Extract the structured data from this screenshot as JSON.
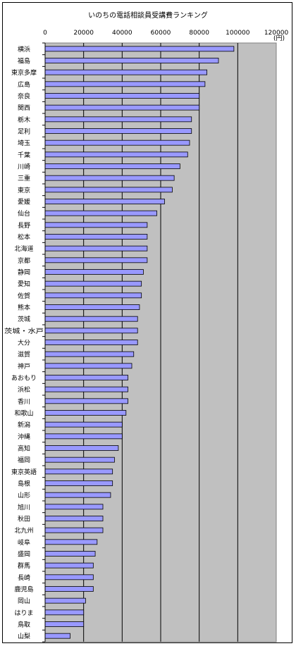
{
  "chart_data": {
    "type": "bar",
    "orientation": "horizontal",
    "title": "いのちの電話相談員受講費ランキング",
    "unit_label": "(円)",
    "xlim": [
      0,
      120000
    ],
    "xticks": [
      0,
      20000,
      40000,
      60000,
      80000,
      100000,
      120000
    ],
    "grid": "vertical",
    "bar_color": "#9999ff",
    "plot_bg": "#c0c0c0",
    "categories": [
      "横浜",
      "福島",
      "東京多摩",
      "広島",
      "奈良",
      "関西",
      "栃木",
      "足利",
      "埼玉",
      "千葉",
      "川崎",
      "三重",
      "東京",
      "愛媛",
      "仙台",
      "長野",
      "松本",
      "北海道",
      "京都",
      "静岡",
      "愛知",
      "佐賀",
      "熊本",
      "茨城",
      "茨城・水戸",
      "大分",
      "滋賀",
      "神戸",
      "あおもり",
      "浜松",
      "香川",
      "和歌山",
      "新潟",
      "沖縄",
      "高知",
      "福岡",
      "東京英語",
      "島根",
      "山形",
      "旭川",
      "秋田",
      "北九州",
      "岐阜",
      "盛岡",
      "群馬",
      "長崎",
      "鹿児島",
      "岡山",
      "はりま",
      "鳥取",
      "山梨"
    ],
    "values": [
      98000,
      90000,
      84000,
      83000,
      80000,
      80000,
      76000,
      76000,
      75000,
      74000,
      70000,
      67000,
      66000,
      62000,
      58000,
      53000,
      53000,
      53000,
      53000,
      51000,
      50000,
      50000,
      49000,
      48000,
      48000,
      48000,
      46000,
      45000,
      43000,
      43000,
      43000,
      42000,
      40000,
      40000,
      38000,
      36000,
      35000,
      35000,
      34000,
      30000,
      30000,
      30000,
      27000,
      26000,
      25000,
      25000,
      25000,
      21000,
      20000,
      20000,
      13000
    ]
  }
}
